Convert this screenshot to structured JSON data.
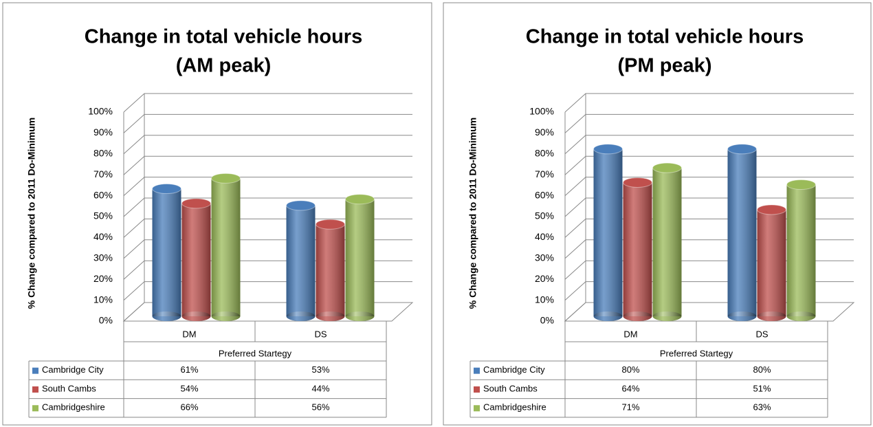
{
  "chart_data": [
    {
      "type": "bar3d",
      "title": [
        "Change in total vehicle hours",
        "(AM peak)"
      ],
      "ylabel": "% Change compared to 2011 Do-Minimum",
      "xlabel": "Preferred Startegy",
      "categories": [
        "DM",
        "DS"
      ],
      "series": [
        {
          "name": "Cambridge City",
          "color": "#4a7ebb",
          "values": [
            61,
            53
          ],
          "value_labels": [
            "61%",
            "53%"
          ]
        },
        {
          "name": "South Cambs",
          "color": "#c0504d",
          "values": [
            54,
            44
          ],
          "value_labels": [
            "54%",
            "44%"
          ]
        },
        {
          "name": "Cambridgeshire",
          "color": "#9bbb59",
          "values": [
            66,
            56
          ],
          "value_labels": [
            "66%",
            "56%"
          ]
        }
      ],
      "ylim": [
        0,
        100
      ],
      "yticks": [
        {
          "value": 0,
          "label": "0%"
        },
        {
          "value": 10,
          "label": "10%"
        },
        {
          "value": 20,
          "label": "20%"
        },
        {
          "value": 30,
          "label": "30%"
        },
        {
          "value": 40,
          "label": "40%"
        },
        {
          "value": 50,
          "label": "50%"
        },
        {
          "value": 60,
          "label": "60%"
        },
        {
          "value": 70,
          "label": "70%"
        },
        {
          "value": 80,
          "label": "80%"
        },
        {
          "value": 90,
          "label": "90%"
        },
        {
          "value": 100,
          "label": "100%"
        }
      ],
      "grid": true
    },
    {
      "type": "bar3d",
      "title": [
        "Change in total vehicle hours",
        "(PM peak)"
      ],
      "ylabel": "% Change compared to 2011 Do-Minimum",
      "xlabel": "Preferred Startegy",
      "categories": [
        "DM",
        "DS"
      ],
      "series": [
        {
          "name": "Cambridge City",
          "color": "#4a7ebb",
          "values": [
            80,
            80
          ],
          "value_labels": [
            "80%",
            "80%"
          ]
        },
        {
          "name": "South Cambs",
          "color": "#c0504d",
          "values": [
            64,
            51
          ],
          "value_labels": [
            "64%",
            "51%"
          ]
        },
        {
          "name": "Cambridgeshire",
          "color": "#9bbb59",
          "values": [
            71,
            63
          ],
          "value_labels": [
            "71%",
            "63%"
          ]
        }
      ],
      "ylim": [
        0,
        100
      ],
      "yticks": [
        {
          "value": 0,
          "label": "0%"
        },
        {
          "value": 10,
          "label": "10%"
        },
        {
          "value": 20,
          "label": "20%"
        },
        {
          "value": 30,
          "label": "30%"
        },
        {
          "value": 40,
          "label": "40%"
        },
        {
          "value": 50,
          "label": "50%"
        },
        {
          "value": 60,
          "label": "60%"
        },
        {
          "value": 70,
          "label": "70%"
        },
        {
          "value": 80,
          "label": "80%"
        },
        {
          "value": 90,
          "label": "90%"
        },
        {
          "value": 100,
          "label": "100%"
        }
      ],
      "grid": true
    }
  ]
}
